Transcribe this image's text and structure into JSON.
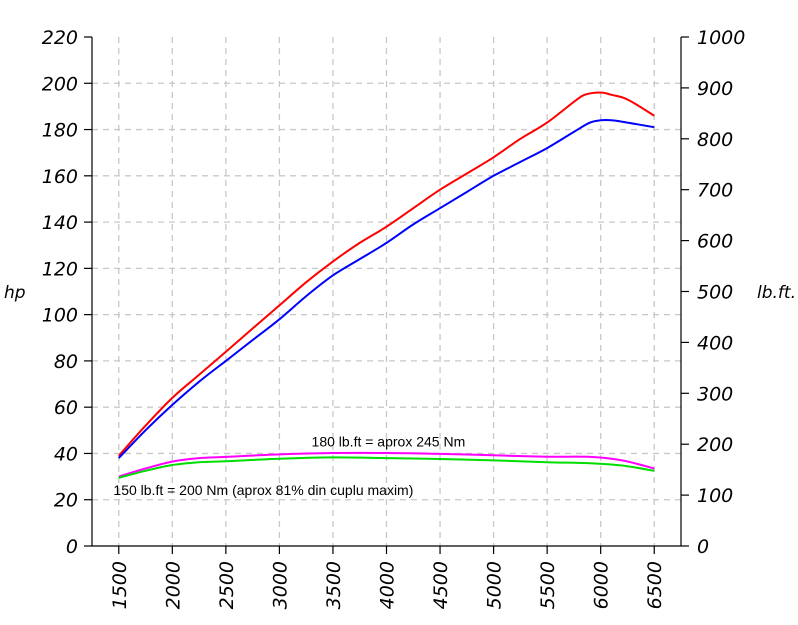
{
  "chart_data": {
    "type": "line",
    "xlabel": "",
    "ylabel": "hp",
    "y2label": "lb.ft.",
    "xlim": [
      1250,
      6750
    ],
    "ylim": [
      0,
      220
    ],
    "y2lim": [
      0,
      1000
    ],
    "x_ticks": [
      1500,
      2000,
      2500,
      3000,
      3500,
      4000,
      4500,
      5000,
      5500,
      6000,
      6500
    ],
    "y_ticks": [
      0,
      20,
      40,
      60,
      80,
      100,
      120,
      140,
      160,
      180,
      200,
      220
    ],
    "y2_ticks": [
      0,
      100,
      200,
      300,
      400,
      500,
      600,
      700,
      800,
      900,
      1000
    ],
    "grid": true,
    "series": [
      {
        "axis": "left",
        "color": "#ff0000",
        "x": [
          1500,
          1750,
          2000,
          2250,
          2500,
          2750,
          3000,
          3250,
          3500,
          3750,
          4000,
          4250,
          4500,
          4750,
          5000,
          5250,
          5500,
          5750,
          5850,
          6000,
          6100,
          6250,
          6500
        ],
        "values": [
          39,
          52,
          64,
          74,
          84,
          94,
          104,
          114,
          123,
          131,
          138,
          146,
          154,
          161,
          168,
          176,
          183,
          192,
          195,
          196,
          195,
          193,
          186
        ]
      },
      {
        "axis": "left",
        "color": "#0000ff",
        "x": [
          1500,
          1750,
          2000,
          2250,
          2500,
          2750,
          3000,
          3250,
          3500,
          3750,
          4000,
          4250,
          4500,
          4750,
          5000,
          5250,
          5500,
          5750,
          5900,
          6000,
          6100,
          6250,
          6500
        ],
        "values": [
          38,
          50,
          61,
          71,
          80,
          89,
          98,
          108,
          117,
          124,
          131,
          139,
          146,
          153,
          160,
          166,
          172,
          179,
          183,
          184,
          184,
          183,
          181
        ]
      },
      {
        "axis": "left",
        "color": "#ff00ff",
        "x": [
          1500,
          1750,
          2000,
          2250,
          2500,
          3000,
          3500,
          4000,
          4500,
          5000,
          5500,
          5900,
          6200,
          6500
        ],
        "values": [
          30,
          33.5,
          36.5,
          38,
          38.5,
          39.6,
          40.2,
          40.2,
          39.8,
          39.2,
          38.6,
          38.5,
          37,
          33.5
        ]
      },
      {
        "axis": "left",
        "color": "#00dd00",
        "x": [
          1500,
          1750,
          2000,
          2250,
          2500,
          3000,
          3500,
          4000,
          4500,
          5000,
          5500,
          5900,
          6200,
          6500
        ],
        "values": [
          29.5,
          32.5,
          35,
          36.2,
          36.6,
          37.7,
          38.3,
          38,
          37.6,
          37,
          36.2,
          35.8,
          34.8,
          32.5
        ]
      }
    ],
    "annotations": [
      {
        "text": "180 lb.ft = aprox 245 Nm",
        "x": 3300,
        "y": 43
      },
      {
        "text": "150 lb.ft = 200 Nm (aprox 81% din cuplu maxim)",
        "x": 1450,
        "y": 22
      }
    ]
  }
}
